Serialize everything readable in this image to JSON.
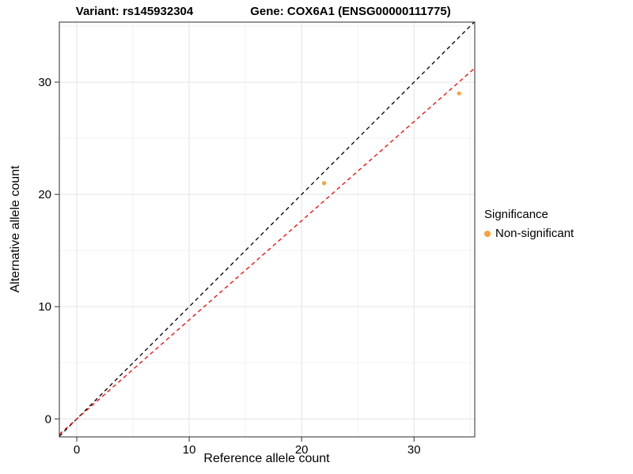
{
  "titles": {
    "variant": "Variant: rs145932304",
    "gene": "Gene: COX6A1 (ENSG00000111775)"
  },
  "chart_data": {
    "type": "scatter",
    "title": "Variant: rs145932304   Gene: COX6A1 (ENSG00000111775)",
    "xlabel": "Reference allele count",
    "ylabel": "Alternative allele count",
    "xlim": [
      -1.55,
      35.4
    ],
    "ylim": [
      -1.6,
      35.35
    ],
    "x_ticks": [
      0,
      10,
      20,
      30
    ],
    "y_ticks": [
      0,
      10,
      20,
      30
    ],
    "x_minor_ticks": [
      5,
      15,
      25,
      35
    ],
    "y_minor_ticks": [
      5,
      15,
      25,
      35
    ],
    "grid": true,
    "points": [
      {
        "x": 22,
        "y": 21,
        "series": "Non-significant"
      },
      {
        "x": 34,
        "y": 29,
        "series": "Non-significant"
      }
    ],
    "point_color": "#F9A13B",
    "lines": [
      {
        "name": "identity-line",
        "slope": 1.0,
        "intercept": 0,
        "color": "#000000",
        "dash": "5,4"
      },
      {
        "name": "fit-line",
        "slope": 0.883,
        "intercept": 0,
        "color": "#FF0000",
        "dash": "5,4"
      }
    ],
    "legend": {
      "title": "Significance",
      "position": "right",
      "entries": [
        {
          "label": "Non-significant",
          "color": "#F9A13B"
        }
      ]
    },
    "colors": {
      "panel_border": "#2b2b2b",
      "major_grid": "#E4E4E4",
      "minor_grid": "#F2F2F2",
      "tick": "#333333",
      "text": "#000000"
    }
  }
}
